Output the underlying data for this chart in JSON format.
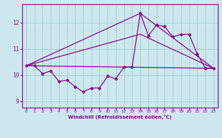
{
  "xlabel": "Windchill (Refroidissement éolien,°C)",
  "bg_color": "#cce8ee",
  "grid_color": "#aacdd6",
  "line_color": "#880088",
  "xlim": [
    -0.5,
    23.5
  ],
  "ylim": [
    8.75,
    12.7
  ],
  "yticks": [
    9,
    10,
    11,
    12
  ],
  "xticks": [
    0,
    1,
    2,
    3,
    4,
    5,
    6,
    7,
    8,
    9,
    10,
    11,
    12,
    13,
    14,
    15,
    16,
    17,
    18,
    19,
    20,
    21,
    22,
    23
  ],
  "series1_x": [
    0,
    1,
    2,
    3,
    4,
    5,
    6,
    7,
    8,
    9,
    10,
    11,
    12,
    13,
    14,
    15,
    16,
    17,
    18,
    19,
    20,
    21,
    22,
    23
  ],
  "series1_y": [
    10.35,
    10.35,
    10.05,
    10.15,
    9.75,
    9.8,
    9.55,
    9.35,
    9.5,
    9.5,
    9.95,
    9.85,
    10.3,
    10.3,
    12.35,
    11.5,
    11.9,
    11.85,
    11.45,
    11.55,
    11.55,
    10.8,
    10.25,
    10.25
  ],
  "trend1_x": [
    0,
    23
  ],
  "trend1_y": [
    10.35,
    10.25
  ],
  "trend2_x": [
    0,
    14,
    23
  ],
  "trend2_y": [
    10.35,
    11.55,
    10.25
  ],
  "trend3_x": [
    0,
    14,
    23
  ],
  "trend3_y": [
    10.35,
    12.35,
    10.25
  ]
}
